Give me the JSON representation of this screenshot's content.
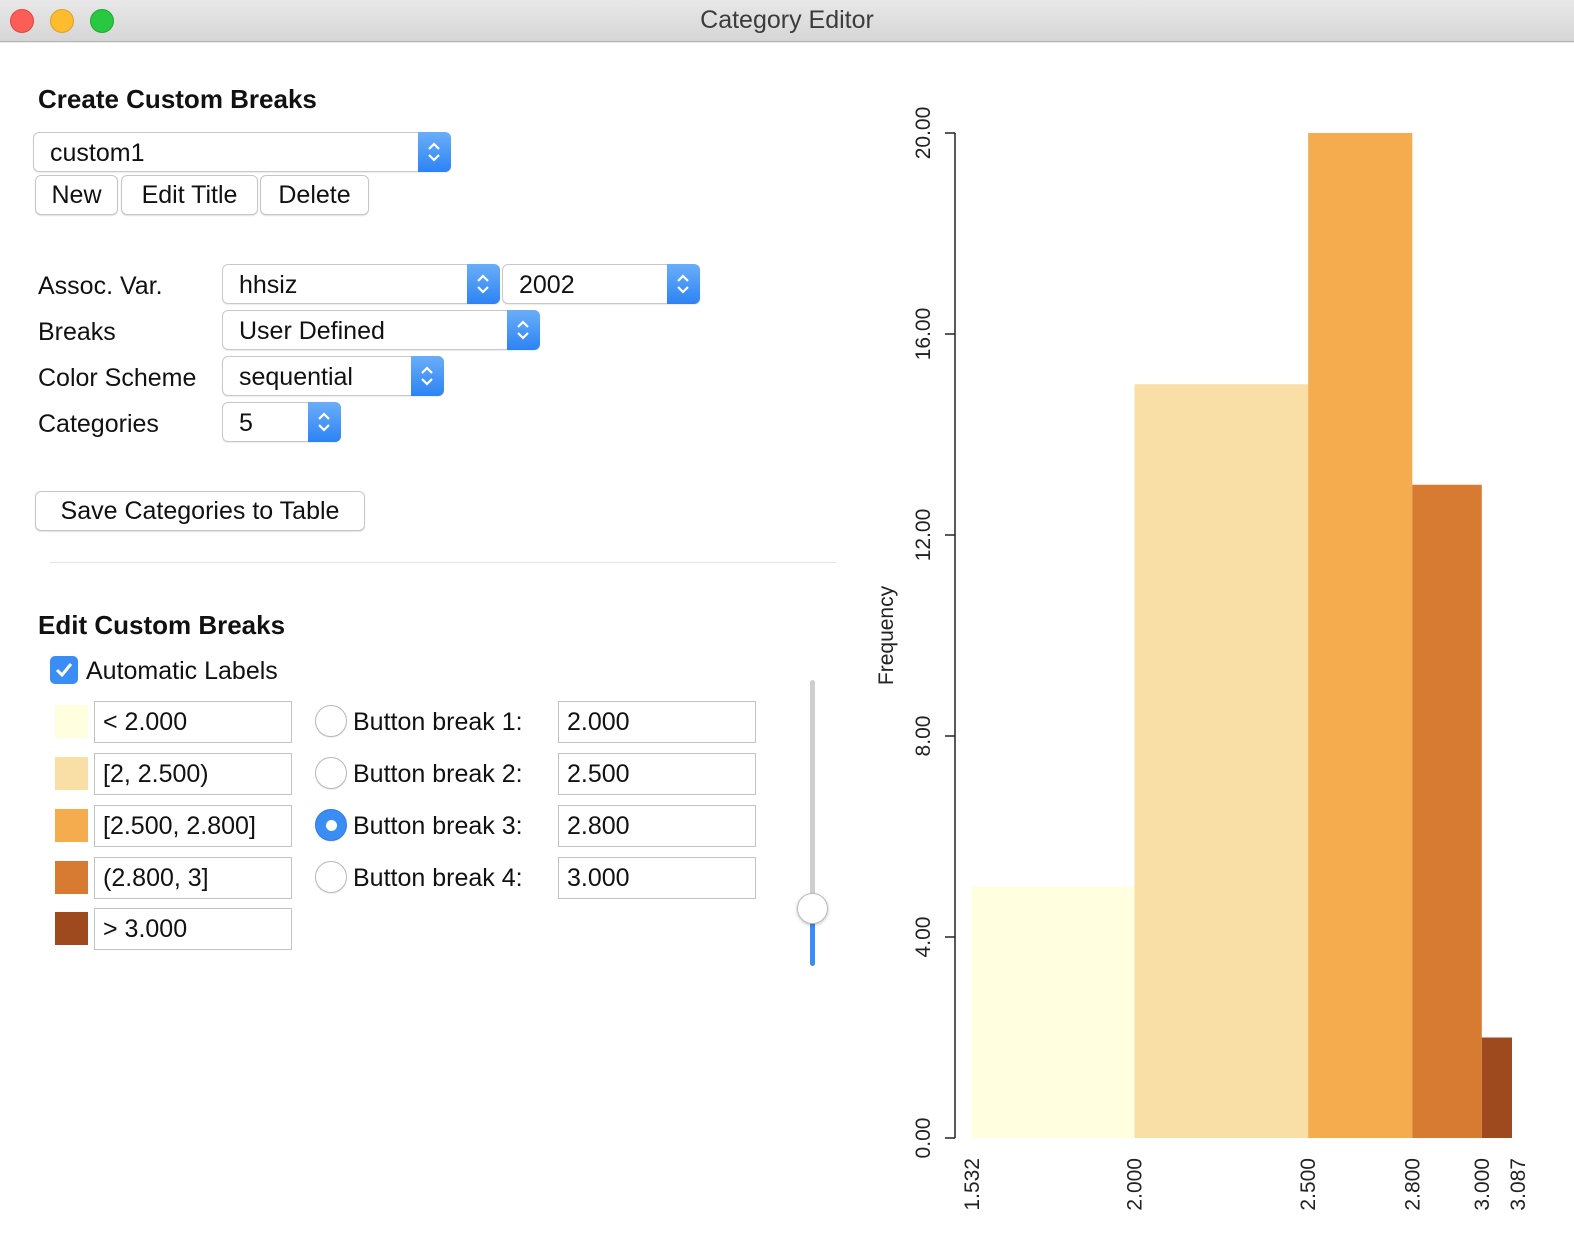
{
  "window": {
    "title": "Category Editor"
  },
  "create": {
    "title": "Create Custom Breaks",
    "selected": "custom1",
    "buttons": {
      "new": "New",
      "edit_title": "Edit Title",
      "delete": "Delete"
    }
  },
  "form": {
    "assoc_var_label": "Assoc. Var.",
    "assoc_var_value": "hhsiz",
    "time_value": "2002",
    "breaks_label": "Breaks",
    "breaks_value": "User Defined",
    "color_scheme_label": "Color Scheme",
    "color_scheme_value": "sequential",
    "categories_label": "Categories",
    "categories_value": "5",
    "save_button": "Save Categories to Table"
  },
  "edit": {
    "title": "Edit Custom Breaks",
    "automatic_labels": "Automatic Labels",
    "automatic_labels_checked": true,
    "categories": [
      {
        "label": "< 2.000",
        "color": "#ffffe0"
      },
      {
        "label": "[2, 2.500)",
        "color": "#f9dea6"
      },
      {
        "label": "[2.500, 2.800]",
        "color": "#f4ac4f"
      },
      {
        "label": "(2.800, 3]",
        "color": "#d77a32"
      },
      {
        "label": "> 3.000",
        "color": "#9e4a1e"
      }
    ],
    "breaks": [
      {
        "label": "Button break 1:",
        "value": "2.000",
        "selected": false
      },
      {
        "label": "Button break 2:",
        "value": "2.500",
        "selected": false
      },
      {
        "label": "Button break 3:",
        "value": "2.800",
        "selected": true
      },
      {
        "label": "Button break 4:",
        "value": "3.000",
        "selected": false
      }
    ],
    "slider_value": 0.2
  },
  "chart_data": {
    "type": "bar",
    "ylabel": "Frequency",
    "ylim": [
      0,
      20
    ],
    "yticks": [
      "0.00",
      "4.00",
      "8.00",
      "12.00",
      "16.00",
      "20.00"
    ],
    "xticks": [
      "1.532",
      "2.000",
      "2.500",
      "2.800",
      "3.000",
      "3.087"
    ],
    "xlim": [
      1.532,
      3.087
    ],
    "bins": [
      {
        "x0": 1.532,
        "x1": 2.0,
        "value": 5,
        "color": "#ffffe0"
      },
      {
        "x0": 2.0,
        "x1": 2.5,
        "value": 15,
        "color": "#f9dea6"
      },
      {
        "x0": 2.5,
        "x1": 2.8,
        "value": 20,
        "color": "#f4ac4f"
      },
      {
        "x0": 2.8,
        "x1": 3.0,
        "value": 13,
        "color": "#d77a32"
      },
      {
        "x0": 3.0,
        "x1": 3.087,
        "value": 2,
        "color": "#9e4a1e"
      }
    ]
  }
}
